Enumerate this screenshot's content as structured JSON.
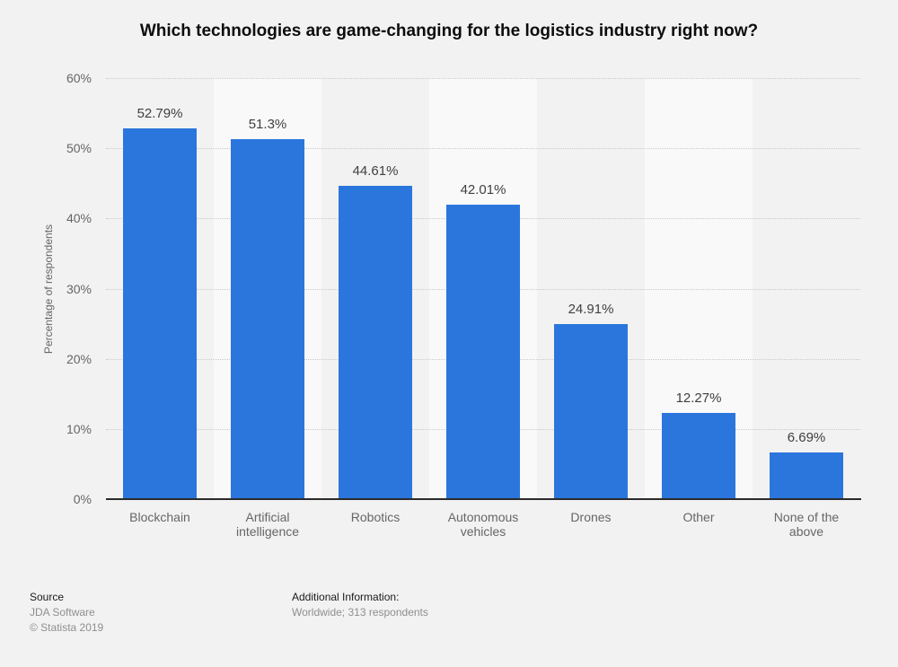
{
  "page": {
    "background_color": "#f2f2f2"
  },
  "title": "Which technologies are game-changing for the logistics industry right now?",
  "chart_data": {
    "type": "bar",
    "title": "Which technologies are game-changing for the logistics industry right now?",
    "categories": [
      "Blockchain",
      "Artificial intelligence",
      "Robotics",
      "Autonomous vehicles",
      "Drones",
      "Other",
      "None of the above"
    ],
    "values": [
      52.79,
      51.3,
      44.61,
      42.01,
      24.91,
      12.27,
      6.69
    ],
    "value_labels": [
      "52.79%",
      "51.3%",
      "44.61%",
      "42.01%",
      "24.91%",
      "12.27%",
      "6.69%"
    ],
    "xlabel": "",
    "ylabel": "Percentage of respondents",
    "ylim": [
      0,
      60
    ],
    "ytick_values": [
      0,
      10,
      20,
      30,
      40,
      50,
      60
    ],
    "ytick_labels": [
      "0%",
      "10%",
      "20%",
      "30%",
      "40%",
      "50%",
      "60%"
    ],
    "grid": "horizontal-dotted",
    "legend": "none",
    "bar_color": "#2b76dd",
    "band_colors": [
      "#f2f2f2",
      "#f9f9f9"
    ],
    "gridline_color": "#c9c9c9",
    "axis_line_color": "#2b2b2b",
    "value_label_color": "#404040",
    "tick_label_color": "#666666"
  },
  "footer": {
    "source_label": "Source",
    "source_value": "JDA Software",
    "copyright": "© Statista 2019",
    "additional_info_label": "Additional Information:",
    "additional_info_value": "Worldwide; 313 respondents"
  }
}
